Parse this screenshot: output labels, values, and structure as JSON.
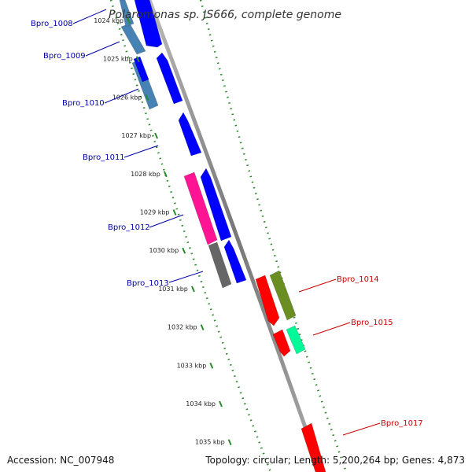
{
  "title": "Polaromonas sp. JS666, complete genome",
  "accession_text": "Accession: NC_007948",
  "summary_text": "Topology: circular; Length: 5,200,264 bp; Genes: 4,873",
  "colors": {
    "forward_label": "#0000aa",
    "reverse_label": "#cc0000",
    "tick": "#2a8a2a",
    "backbone": "#888888"
  },
  "ticks": [
    {
      "label": "1024 kbp"
    },
    {
      "label": "1025 kbp"
    },
    {
      "label": "1026 kbp"
    },
    {
      "label": "1027 kbp"
    },
    {
      "label": "1028 kbp"
    },
    {
      "label": "1029 kbp"
    },
    {
      "label": "1030 kbp"
    },
    {
      "label": "1031 kbp"
    },
    {
      "label": "1032 kbp"
    },
    {
      "label": "1033 kbp"
    },
    {
      "label": "1034 kbp"
    },
    {
      "label": "1035 kbp"
    }
  ],
  "gene_labels": [
    {
      "text": "Bpro_1008",
      "strand": "forward"
    },
    {
      "text": "Bpro_1009",
      "strand": "forward"
    },
    {
      "text": "Bpro_1010",
      "strand": "forward"
    },
    {
      "text": "Bpro_1011",
      "strand": "forward"
    },
    {
      "text": "Bpro_1012",
      "strand": "forward"
    },
    {
      "text": "Bpro_1013",
      "strand": "forward"
    },
    {
      "text": "Bpro_1014",
      "strand": "reverse"
    },
    {
      "text": "Bpro_1015",
      "strand": "reverse"
    },
    {
      "text": "Bpro_1017",
      "strand": "reverse"
    }
  ],
  "features": [
    {
      "color": "#4682b4"
    },
    {
      "color": "#0000ff"
    },
    {
      "color": "#4682b4"
    },
    {
      "color": "#0000ff"
    },
    {
      "color": "#4682b4"
    },
    {
      "color": "#0000ff"
    },
    {
      "color": "#0000ff"
    },
    {
      "color": "#ff1493"
    },
    {
      "color": "#0000ff"
    },
    {
      "color": "#666666"
    },
    {
      "color": "#0000ff"
    },
    {
      "color": "#ff0000"
    },
    {
      "color": "#6b8e23"
    },
    {
      "color": "#ff0000"
    },
    {
      "color": "#00fa9a"
    },
    {
      "color": "#ff0000"
    }
  ]
}
